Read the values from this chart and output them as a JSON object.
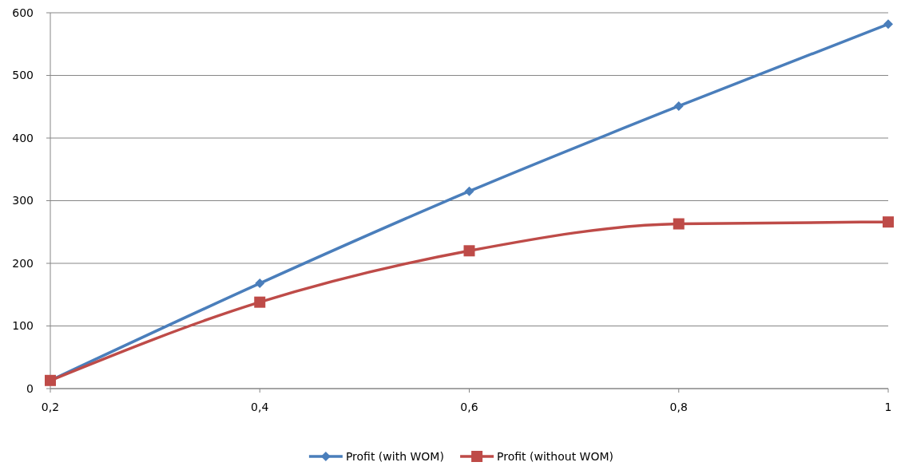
{
  "chart_data": {
    "type": "line",
    "x": [
      0.2,
      0.4,
      0.6,
      0.8,
      1
    ],
    "series": [
      {
        "name": "Profit (with WOM)",
        "color": "#4a7ebb",
        "marker": "diamond",
        "values": [
          13,
          168,
          315,
          451,
          582
        ]
      },
      {
        "name": "Profit (without WOM)",
        "color": "#be4b48",
        "marker": "square",
        "values": [
          13,
          138,
          220,
          263,
          266
        ]
      }
    ],
    "xlim": [
      0.2,
      1
    ],
    "xticks": [
      {
        "value": 0.2,
        "label": "0,2"
      },
      {
        "value": 0.4,
        "label": "0,4"
      },
      {
        "value": 0.6,
        "label": "0,6"
      },
      {
        "value": 0.8,
        "label": "0,8"
      },
      1
    ],
    "ylim": [
      0,
      600
    ],
    "yticks": [
      0,
      100,
      200,
      300,
      400,
      500,
      600
    ],
    "grid": "y",
    "legend": "bottom"
  }
}
